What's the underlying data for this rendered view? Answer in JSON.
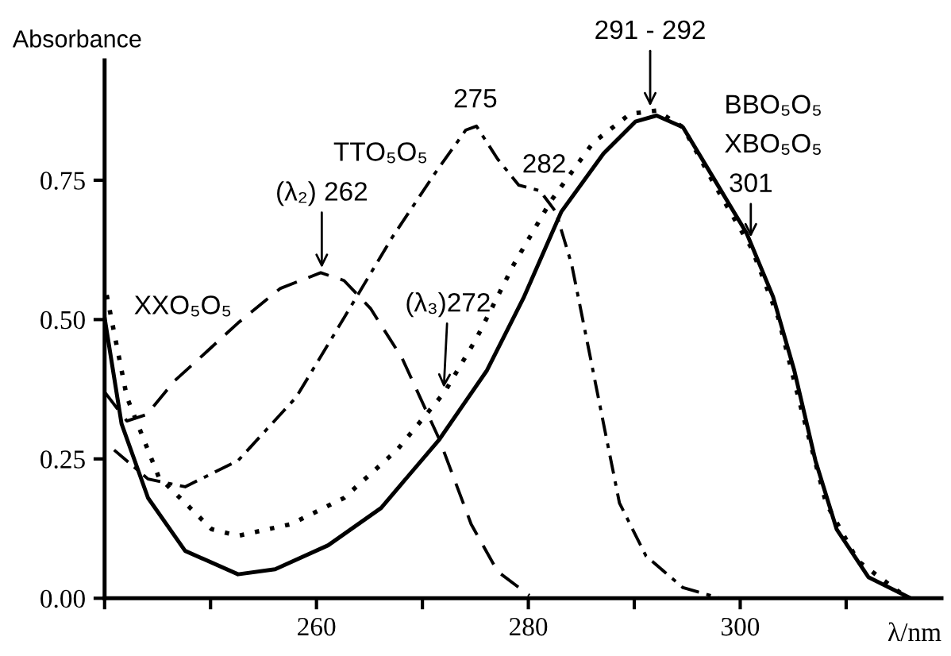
{
  "chart_data": {
    "type": "line",
    "xlabel": "λ/nm",
    "ylabel": "Absorbance",
    "xlim": [
      240,
      319
    ],
    "ylim": [
      0,
      0.965
    ],
    "xticks": [
      {
        "value": 240,
        "label": null
      },
      {
        "value": 250,
        "label": null
      },
      260,
      {
        "value": 270,
        "label": null
      },
      280,
      {
        "value": 290,
        "label": null
      },
      300,
      {
        "value": 310,
        "label": null
      }
    ],
    "yticks": [
      {
        "value": 0,
        "label": "0.00"
      },
      {
        "value": 0.25,
        "label": "0.25"
      },
      {
        "value": 0.5,
        "label": "0.50"
      },
      {
        "value": 0.75,
        "label": "0.75"
      }
    ],
    "grid": false,
    "legend": false,
    "marker": "none",
    "series": [
      {
        "name": "XXO₅O₅",
        "color": "#000000",
        "line_style": "dashed",
        "x": [
          240.0,
          242.1,
          244.0,
          246.6,
          249.5,
          252.6,
          256.6,
          260.4,
          262.6,
          265.1,
          268.1,
          271.6,
          274.6,
          277.1,
          280.1
        ],
        "values": [
          0.37,
          0.318,
          0.33,
          0.39,
          0.44,
          0.494,
          0.556,
          0.584,
          0.57,
          0.52,
          0.43,
          0.285,
          0.133,
          0.048,
          0.005
        ]
      },
      {
        "name": "TTO₅O₅",
        "color": "#000000",
        "line_style": "dashdot",
        "x": [
          240.9,
          244.1,
          247.6,
          252.6,
          258.1,
          262.6,
          267.1,
          271.1,
          274.1,
          275.1,
          277.1,
          279.1,
          281.1,
          282.6,
          284.1,
          285.6,
          287.1,
          288.6,
          291.1,
          294.6,
          298.1
        ],
        "values": [
          0.266,
          0.214,
          0.2,
          0.247,
          0.361,
          0.503,
          0.646,
          0.76,
          0.84,
          0.847,
          0.788,
          0.741,
          0.731,
          0.693,
          0.598,
          0.456,
          0.313,
          0.171,
          0.076,
          0.019,
          0.0
        ]
      },
      {
        "name": "BBO₅O₅",
        "color": "#000000",
        "line_style": "solid",
        "x": [
          240.0,
          241.6,
          244.1,
          247.6,
          252.6,
          256.1,
          261.1,
          266.1,
          271.6,
          276.1,
          279.6,
          283.1,
          287.1,
          290.1,
          292.1,
          294.6,
          297.6,
          300.6,
          303.1,
          305.1,
          307.1,
          309.1,
          312.1,
          316.1
        ],
        "values": [
          0.503,
          0.313,
          0.18,
          0.085,
          0.043,
          0.052,
          0.095,
          0.162,
          0.285,
          0.409,
          0.541,
          0.693,
          0.798,
          0.855,
          0.866,
          0.845,
          0.75,
          0.655,
          0.541,
          0.409,
          0.247,
          0.124,
          0.038,
          0.0
        ]
      },
      {
        "name": "XBO₅O₅",
        "color": "#000000",
        "line_style": "dotted",
        "x": [
          240.2,
          242.1,
          245.1,
          250.1,
          252.6,
          257.6,
          262.6,
          267.6,
          272.1,
          275.1,
          278.6,
          282.1,
          286.1,
          289.6,
          292.1,
          294.6,
          297.6,
          301.1,
          303.6,
          305.6,
          308.1,
          311.1,
          315.1
        ],
        "values": [
          0.544,
          0.361,
          0.218,
          0.124,
          0.112,
          0.133,
          0.18,
          0.266,
          0.37,
          0.466,
          0.598,
          0.712,
          0.817,
          0.869,
          0.875,
          0.845,
          0.741,
          0.627,
          0.503,
          0.352,
          0.171,
          0.067,
          0.01
        ]
      }
    ],
    "annotations": [
      {
        "text": "(λ₂) 262",
        "x": 260.5,
        "y": 0.585
      },
      {
        "text": "(λ₃)272",
        "x": 272,
        "y": 0.37
      },
      {
        "text": "275",
        "x": 275,
        "y": 0.847
      },
      {
        "text": "282",
        "x": 281.5,
        "y": 0.73
      },
      {
        "text": "291 - 292",
        "x": 291.5,
        "y": 0.875
      },
      {
        "text": "301",
        "x": 301,
        "y": 0.64
      }
    ]
  }
}
